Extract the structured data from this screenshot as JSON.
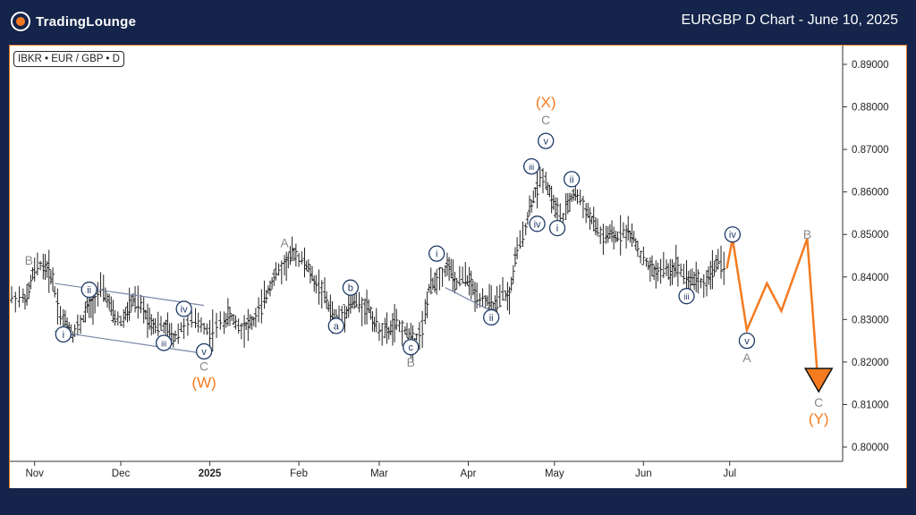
{
  "header": {
    "brand": "TradingLounge",
    "title": "EURGBP D Chart - June 10, 2025"
  },
  "ticker": "IBKR • EUR / GBP • D",
  "colors": {
    "background": "#14244a",
    "accent": "#f47b20",
    "wave_blue": "#1f3a68",
    "wave_gray": "#8a8a8a",
    "candle": "#222222"
  },
  "chart_data": {
    "type": "candlestick",
    "ylim": [
      0.7985,
      0.8935
    ],
    "y_ticks": [
      "0.89000",
      "0.88000",
      "0.87000",
      "0.86000",
      "0.85000",
      "0.84000",
      "0.83000",
      "0.82000",
      "0.81000",
      "0.80000"
    ],
    "x_ticks": [
      "Nov",
      "Dec",
      "2025",
      "Feb",
      "Mar",
      "Apr",
      "May",
      "Jun",
      "Jul"
    ],
    "series": [
      {
        "values": [
          {
            "d": "2024-10-24",
            "c": 0.8352
          },
          {
            "d": "2024-10-28",
            "c": 0.8348
          },
          {
            "d": "2024-10-30",
            "c": 0.8405
          },
          {
            "d": "2024-11-01",
            "c": 0.843
          },
          {
            "d": "2024-11-04",
            "c": 0.842
          },
          {
            "d": "2024-11-06",
            "c": 0.8395
          },
          {
            "d": "2024-11-08",
            "c": 0.831
          },
          {
            "d": "2024-11-11",
            "c": 0.829
          },
          {
            "d": "2024-11-13",
            "c": 0.8265
          },
          {
            "d": "2024-11-15",
            "c": 0.829
          },
          {
            "d": "2024-11-18",
            "c": 0.833
          },
          {
            "d": "2024-11-20",
            "c": 0.834
          },
          {
            "d": "2024-11-22",
            "c": 0.837
          },
          {
            "d": "2024-11-25",
            "c": 0.835
          },
          {
            "d": "2024-11-27",
            "c": 0.831
          },
          {
            "d": "2024-11-29",
            "c": 0.8295
          },
          {
            "d": "2024-12-02",
            "c": 0.832
          },
          {
            "d": "2024-12-04",
            "c": 0.8345
          },
          {
            "d": "2024-12-06",
            "c": 0.833
          },
          {
            "d": "2024-12-09",
            "c": 0.8305
          },
          {
            "d": "2024-12-11",
            "c": 0.829
          },
          {
            "d": "2024-12-13",
            "c": 0.8285
          },
          {
            "d": "2024-12-16",
            "c": 0.8275
          },
          {
            "d": "2024-12-18",
            "c": 0.8255
          },
          {
            "d": "2024-12-20",
            "c": 0.828
          },
          {
            "d": "2024-12-23",
            "c": 0.8295
          },
          {
            "d": "2024-12-27",
            "c": 0.829
          },
          {
            "d": "2024-12-30",
            "c": 0.827
          },
          {
            "d": "2025-01-02",
            "c": 0.829
          },
          {
            "d": "2025-01-06",
            "c": 0.831
          },
          {
            "d": "2025-01-08",
            "c": 0.83
          },
          {
            "d": "2025-01-10",
            "c": 0.828
          },
          {
            "d": "2025-01-13",
            "c": 0.829
          },
          {
            "d": "2025-01-15",
            "c": 0.8295
          },
          {
            "d": "2025-01-17",
            "c": 0.833
          },
          {
            "d": "2025-01-20",
            "c": 0.837
          },
          {
            "d": "2025-01-22",
            "c": 0.84
          },
          {
            "d": "2025-01-24",
            "c": 0.842
          },
          {
            "d": "2025-01-27",
            "c": 0.844
          },
          {
            "d": "2025-01-29",
            "c": 0.846
          },
          {
            "d": "2025-01-31",
            "c": 0.844
          },
          {
            "d": "2025-02-03",
            "c": 0.842
          },
          {
            "d": "2025-02-05",
            "c": 0.839
          },
          {
            "d": "2025-02-07",
            "c": 0.837
          },
          {
            "d": "2025-02-10",
            "c": 0.833
          },
          {
            "d": "2025-02-12",
            "c": 0.83
          },
          {
            "d": "2025-02-14",
            "c": 0.831
          },
          {
            "d": "2025-02-17",
            "c": 0.833
          },
          {
            "d": "2025-02-19",
            "c": 0.8345
          },
          {
            "d": "2025-02-21",
            "c": 0.833
          },
          {
            "d": "2025-02-24",
            "c": 0.833
          },
          {
            "d": "2025-02-26",
            "c": 0.829
          },
          {
            "d": "2025-02-28",
            "c": 0.8275
          },
          {
            "d": "2025-03-03",
            "c": 0.827
          },
          {
            "d": "2025-03-05",
            "c": 0.829
          },
          {
            "d": "2025-03-07",
            "c": 0.828
          },
          {
            "d": "2025-03-10",
            "c": 0.826
          },
          {
            "d": "2025-03-12",
            "c": 0.825
          },
          {
            "d": "2025-03-14",
            "c": 0.828
          },
          {
            "d": "2025-03-17",
            "c": 0.837
          },
          {
            "d": "2025-03-19",
            "c": 0.839
          },
          {
            "d": "2025-03-21",
            "c": 0.841
          },
          {
            "d": "2025-03-24",
            "c": 0.843
          },
          {
            "d": "2025-03-26",
            "c": 0.838
          },
          {
            "d": "2025-03-28",
            "c": 0.84
          },
          {
            "d": "2025-03-31",
            "c": 0.839
          },
          {
            "d": "2025-04-02",
            "c": 0.836
          },
          {
            "d": "2025-04-04",
            "c": 0.835
          },
          {
            "d": "2025-04-07",
            "c": 0.834
          },
          {
            "d": "2025-04-09",
            "c": 0.832
          },
          {
            "d": "2025-04-11",
            "c": 0.836
          },
          {
            "d": "2025-04-14",
            "c": 0.835
          },
          {
            "d": "2025-04-16",
            "c": 0.844
          },
          {
            "d": "2025-04-18",
            "c": 0.85
          },
          {
            "d": "2025-04-21",
            "c": 0.856
          },
          {
            "d": "2025-04-23",
            "c": 0.86
          },
          {
            "d": "2025-04-25",
            "c": 0.864
          },
          {
            "d": "2025-04-28",
            "c": 0.86
          },
          {
            "d": "2025-04-30",
            "c": 0.856
          },
          {
            "d": "2025-05-02",
            "c": 0.854
          },
          {
            "d": "2025-05-05",
            "c": 0.858
          },
          {
            "d": "2025-05-07",
            "c": 0.86
          },
          {
            "d": "2025-05-09",
            "c": 0.857
          },
          {
            "d": "2025-05-12",
            "c": 0.854
          },
          {
            "d": "2025-05-14",
            "c": 0.852
          },
          {
            "d": "2025-05-16",
            "c": 0.849
          },
          {
            "d": "2025-05-19",
            "c": 0.85
          },
          {
            "d": "2025-05-21",
            "c": 0.849
          },
          {
            "d": "2025-05-23",
            "c": 0.851
          },
          {
            "d": "2025-05-26",
            "c": 0.85
          },
          {
            "d": "2025-05-28",
            "c": 0.848
          },
          {
            "d": "2025-05-30",
            "c": 0.844
          },
          {
            "d": "2025-06-02",
            "c": 0.842
          },
          {
            "d": "2025-06-04",
            "c": 0.841
          },
          {
            "d": "2025-06-06",
            "c": 0.842
          },
          {
            "d": "2025-06-09",
            "c": 0.841
          },
          {
            "d": "2025-06-11",
            "c": 0.843
          },
          {
            "d": "2025-06-13",
            "c": 0.841
          },
          {
            "d": "2025-06-16",
            "c": 0.839
          },
          {
            "d": "2025-06-18",
            "c": 0.84
          },
          {
            "d": "2025-06-20",
            "c": 0.838
          },
          {
            "d": "2025-06-23",
            "c": 0.841
          },
          {
            "d": "2025-06-25",
            "c": 0.843
          },
          {
            "d": "2025-06-27",
            "c": 0.8425
          },
          {
            "d": "2025-06-30",
            "c": 0.842
          }
        ]
      }
    ],
    "projection": [
      {
        "d": "2025-06-30",
        "c": 0.842
      },
      {
        "d": "2025-07-02",
        "c": 0.849
      },
      {
        "d": "2025-07-07",
        "c": 0.8275
      },
      {
        "d": "2025-07-14",
        "c": 0.8385
      },
      {
        "d": "2025-07-19",
        "c": 0.832
      },
      {
        "d": "2025-07-28",
        "c": 0.849
      },
      {
        "d": "2025-08-01",
        "c": 0.813
      }
    ],
    "wave_labels": [
      {
        "text": "B",
        "style": "gray",
        "d": "2024-10-30",
        "v": 0.844,
        "pos": "above"
      },
      {
        "text": "i",
        "style": "blue",
        "d": "2024-11-11",
        "v": 0.8265,
        "pos": "below"
      },
      {
        "text": "ii",
        "style": "blue",
        "d": "2024-11-20",
        "v": 0.837,
        "pos": "above"
      },
      {
        "text": "iii",
        "style": "blue",
        "d": "2024-12-16",
        "v": 0.8245,
        "pos": "below"
      },
      {
        "text": "iv",
        "style": "blue",
        "d": "2024-12-23",
        "v": 0.8325,
        "pos": "above"
      },
      {
        "text": "v",
        "style": "blue",
        "d": "2024-12-30",
        "v": 0.8225,
        "pos": "below"
      },
      {
        "text": "C",
        "style": "gray",
        "d": "2024-12-30",
        "v": 0.819,
        "pos": "below"
      },
      {
        "text": "(W)",
        "style": "orange",
        "d": "2024-12-30",
        "v": 0.815,
        "pos": "below"
      },
      {
        "text": "A",
        "style": "gray",
        "d": "2025-01-27",
        "v": 0.848,
        "pos": "above"
      },
      {
        "text": "a",
        "style": "blue",
        "d": "2025-02-14",
        "v": 0.8285,
        "pos": "below"
      },
      {
        "text": "b",
        "style": "blue",
        "d": "2025-02-19",
        "v": 0.8375,
        "pos": "above"
      },
      {
        "text": "c",
        "style": "blue",
        "d": "2025-03-12",
        "v": 0.8235,
        "pos": "below"
      },
      {
        "text": "B",
        "style": "gray",
        "d": "2025-03-12",
        "v": 0.82,
        "pos": "below"
      },
      {
        "text": "i",
        "style": "blue",
        "d": "2025-03-21",
        "v": 0.8455,
        "pos": "above"
      },
      {
        "text": "ii",
        "style": "blue",
        "d": "2025-04-09",
        "v": 0.8305,
        "pos": "below"
      },
      {
        "text": "iii",
        "style": "blue",
        "d": "2025-04-23",
        "v": 0.866,
        "pos": "above"
      },
      {
        "text": "iv",
        "style": "blue",
        "d": "2025-04-25",
        "v": 0.8525,
        "pos": "below"
      },
      {
        "text": "v",
        "style": "blue",
        "d": "2025-04-28",
        "v": 0.872,
        "pos": "above"
      },
      {
        "text": "C",
        "style": "gray",
        "d": "2025-04-28",
        "v": 0.877,
        "pos": "above"
      },
      {
        "text": "(X)",
        "style": "orange",
        "d": "2025-04-28",
        "v": 0.881,
        "pos": "above"
      },
      {
        "text": "ii",
        "style": "blue",
        "d": "2025-05-07",
        "v": 0.863,
        "pos": "above"
      },
      {
        "text": "i",
        "style": "blue",
        "d": "2025-05-02",
        "v": 0.8515,
        "pos": "below"
      },
      {
        "text": "iii",
        "style": "blue",
        "d": "2025-06-16",
        "v": 0.8355,
        "pos": "below"
      },
      {
        "text": "iv",
        "style": "blue",
        "d": "2025-07-02",
        "v": 0.85,
        "pos": "above"
      },
      {
        "text": "v",
        "style": "blue",
        "d": "2025-07-07",
        "v": 0.825,
        "pos": "below"
      },
      {
        "text": "A",
        "style": "gray",
        "d": "2025-07-07",
        "v": 0.821,
        "pos": "below"
      },
      {
        "text": "B",
        "style": "gray",
        "d": "2025-07-28",
        "v": 0.85,
        "pos": "above"
      },
      {
        "text": "C",
        "style": "gray",
        "d": "2025-08-01",
        "v": 0.8105,
        "pos": "below"
      },
      {
        "text": "(Y)",
        "style": "orange",
        "d": "2025-08-01",
        "v": 0.8065,
        "pos": "below"
      }
    ],
    "channels": [
      {
        "from": {
          "d": "2024-11-08",
          "v": 0.8385
        },
        "to": {
          "d": "2024-12-30",
          "v": 0.8333
        }
      },
      {
        "from": {
          "d": "2024-11-08",
          "v": 0.8272
        },
        "to": {
          "d": "2024-12-30",
          "v": 0.822
        }
      },
      {
        "from": {
          "d": "2025-03-24",
          "v": 0.8375
        },
        "to": {
          "d": "2025-04-09",
          "v": 0.832
        }
      }
    ],
    "grid": false
  }
}
